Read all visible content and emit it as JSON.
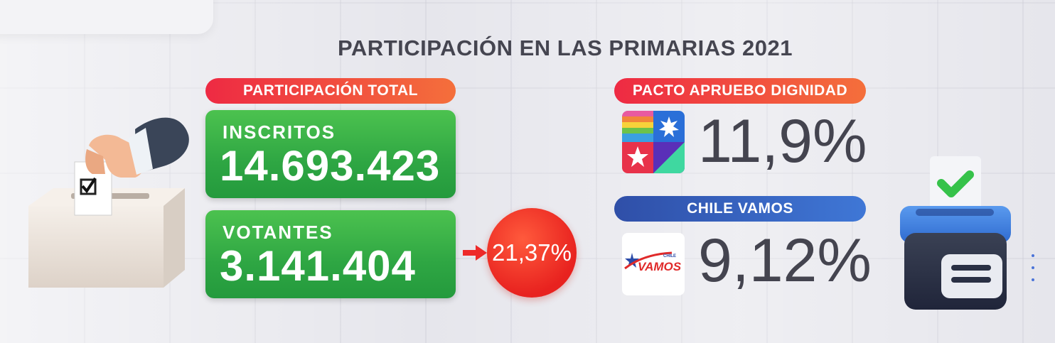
{
  "title": "PARTICIPACIÓN EN LAS PRIMARIAS 2021",
  "left_panel": {
    "header": "PARTICIPACIÓN TOTAL",
    "inscritos_label": "INSCRITOS",
    "inscritos_value": "14.693.423",
    "votantes_label": "VOTANTES",
    "votantes_value": "3.141.404",
    "participation_pct": "21,37%"
  },
  "right_panel": {
    "apruebo": {
      "header": "PACTO APRUEBO DIGNIDAD",
      "value": "11,9%"
    },
    "vamos": {
      "header": "CHILE VAMOS",
      "value": "9,12%",
      "logo_small": "CHILE",
      "logo_text": "VAMOS"
    }
  },
  "colors": {
    "green": "#2ea643",
    "red_pill": "#ee2a43",
    "blue_pill": "#3f77d6",
    "circle": "#e8221f",
    "dark_text": "#44444f"
  },
  "icons": {
    "left": "ballot-box-hand-icon",
    "right": "ballot-box-check-icon",
    "arrow": "arrow-right-icon",
    "apruebo_logo": "apruebo-dignidad-logo",
    "vamos_logo": "chile-vamos-logo"
  }
}
